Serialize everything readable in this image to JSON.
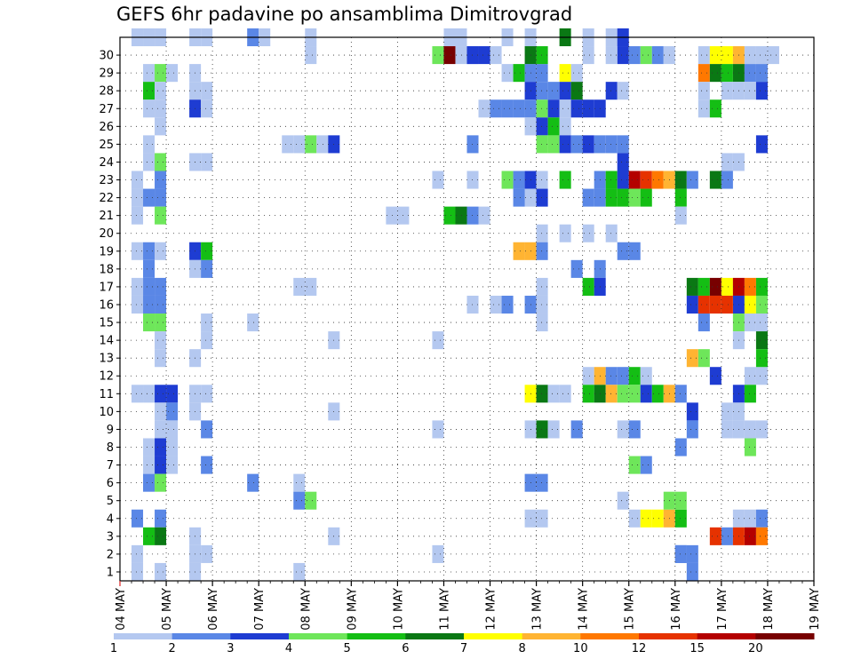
{
  "title": "GEFS 6hr padavine po ansamblima Dimitrovgrad",
  "chart_data": {
    "type": "heatmap",
    "title": "GEFS 6hr padavine po ansamblima Dimitrovgrad",
    "xlabel": "",
    "ylabel": "",
    "x_tick_labels": [
      "04 MAY",
      "05 MAY",
      "06 MAY",
      "07 MAY",
      "08 MAY",
      "09 MAY",
      "10 MAY",
      "11 MAY",
      "12 MAY",
      "13 MAY",
      "14 MAY",
      "15 MAY",
      "16 MAY",
      "17 MAY",
      "18 MAY",
      "19 MAY"
    ],
    "y_tick_labels": [
      "1",
      "2",
      "3",
      "4",
      "5",
      "6",
      "7",
      "8",
      "9",
      "10",
      "11",
      "12",
      "13",
      "14",
      "15",
      "16",
      "17",
      "18",
      "19",
      "20",
      "21",
      "22",
      "23",
      "24",
      "25",
      "26",
      "27",
      "28",
      "29",
      "30"
    ],
    "ylim": [
      0,
      30
    ],
    "grid": true,
    "step_hours": 6,
    "legend": {
      "placement": "bottom",
      "levels": [
        "1",
        "2",
        "3",
        "4",
        "5",
        "6",
        "7",
        "8",
        "10",
        "12",
        "15",
        "20"
      ],
      "colors": [
        "#b4c8f0",
        "#5a87e6",
        "#1e3cd2",
        "#6ee65a",
        "#14be14",
        "#0a7814",
        "#ffff00",
        "#ffb432",
        "#ff7800",
        "#e63200",
        "#b40000",
        "#780000"
      ]
    },
    "cell_colors_by_class": [
      "#b4c8f0",
      "#5a87e6",
      "#1e3cd2",
      "#6ee65a",
      "#14be14",
      "#0a7814",
      "#ffff00",
      "#ffb432",
      "#ff7800",
      "#e63200",
      "#b40000",
      "#780000"
    ],
    "cells": [
      [
        1,
        30,
        1
      ],
      [
        2,
        30,
        1
      ],
      [
        3,
        30,
        1
      ],
      [
        6,
        30,
        1
      ],
      [
        7,
        30,
        1
      ],
      [
        11,
        30,
        2
      ],
      [
        12,
        30,
        1
      ],
      [
        16,
        30,
        1
      ],
      [
        16,
        29,
        1
      ],
      [
        28,
        30,
        1
      ],
      [
        29,
        30,
        1
      ],
      [
        35,
        30,
        1
      ],
      [
        30,
        29,
        1
      ],
      [
        33,
        30,
        1
      ],
      [
        2,
        28,
        1
      ],
      [
        3,
        28,
        4
      ],
      [
        4,
        28,
        1
      ],
      [
        2,
        27,
        5
      ],
      [
        3,
        27,
        1
      ],
      [
        2,
        26,
        1
      ],
      [
        3,
        26,
        1
      ],
      [
        3,
        25,
        1
      ],
      [
        2,
        24,
        1
      ],
      [
        2,
        23,
        1
      ],
      [
        3,
        23,
        4
      ],
      [
        1,
        22,
        1
      ],
      [
        3,
        22,
        2
      ],
      [
        1,
        21,
        1
      ],
      [
        2,
        21,
        2
      ],
      [
        3,
        21,
        2
      ],
      [
        1,
        20,
        1
      ],
      [
        3,
        20,
        4
      ],
      [
        1,
        18,
        1
      ],
      [
        2,
        18,
        2
      ],
      [
        3,
        18,
        1
      ],
      [
        2,
        17,
        2
      ],
      [
        2,
        16,
        2
      ],
      [
        1,
        16,
        1
      ],
      [
        3,
        16,
        2
      ],
      [
        1,
        15,
        1
      ],
      [
        2,
        15,
        2
      ],
      [
        3,
        15,
        2
      ],
      [
        3,
        14,
        4
      ],
      [
        2,
        14,
        4
      ],
      [
        3,
        13,
        1
      ],
      [
        3,
        12,
        1
      ],
      [
        1,
        10,
        1
      ],
      [
        2,
        10,
        1
      ],
      [
        3,
        10,
        3
      ],
      [
        4,
        10,
        3
      ],
      [
        4,
        9,
        2
      ],
      [
        3,
        9,
        1
      ],
      [
        4,
        8,
        1
      ],
      [
        3,
        8,
        1
      ],
      [
        2,
        7,
        1
      ],
      [
        3,
        7,
        3
      ],
      [
        4,
        7,
        1
      ],
      [
        2,
        6,
        1
      ],
      [
        3,
        6,
        3
      ],
      [
        4,
        6,
        1
      ],
      [
        2,
        5,
        2
      ],
      [
        3,
        5,
        4
      ],
      [
        1,
        3,
        2
      ],
      [
        3,
        3,
        2
      ],
      [
        2,
        2,
        5
      ],
      [
        3,
        2,
        6
      ],
      [
        1,
        1,
        1
      ],
      [
        1,
        0,
        1
      ],
      [
        3,
        0,
        1
      ],
      [
        6,
        28,
        1
      ],
      [
        6,
        27,
        1
      ],
      [
        7,
        27,
        1
      ],
      [
        6,
        26,
        3
      ],
      [
        7,
        26,
        1
      ],
      [
        6,
        23,
        1
      ],
      [
        7,
        23,
        1
      ],
      [
        6,
        18,
        3
      ],
      [
        7,
        18,
        5
      ],
      [
        6,
        17,
        1
      ],
      [
        7,
        17,
        2
      ],
      [
        7,
        14,
        1
      ],
      [
        6,
        12,
        1
      ],
      [
        7,
        13,
        1
      ],
      [
        6,
        10,
        1
      ],
      [
        7,
        10,
        1
      ],
      [
        6,
        9,
        1
      ],
      [
        7,
        8,
        2
      ],
      [
        7,
        6,
        2
      ],
      [
        6,
        2,
        1
      ],
      [
        6,
        1,
        1
      ],
      [
        7,
        1,
        1
      ],
      [
        6,
        0,
        1
      ],
      [
        11,
        14,
        1
      ],
      [
        11,
        5,
        2
      ],
      [
        15,
        5,
        1
      ],
      [
        15,
        4,
        2
      ],
      [
        16,
        4,
        4
      ],
      [
        15,
        16,
        1
      ],
      [
        16,
        16,
        1
      ],
      [
        14,
        24,
        1
      ],
      [
        15,
        24,
        1
      ],
      [
        16,
        24,
        4
      ],
      [
        17,
        24,
        1
      ],
      [
        18,
        24,
        3
      ],
      [
        18,
        13,
        1
      ],
      [
        18,
        9,
        1
      ],
      [
        18,
        2,
        1
      ],
      [
        15,
        0,
        1
      ],
      [
        23,
        20,
        1
      ],
      [
        24,
        20,
        1
      ],
      [
        27,
        29,
        4
      ],
      [
        28,
        29,
        12
      ],
      [
        29,
        29,
        1
      ],
      [
        30,
        29,
        3
      ],
      [
        31,
        29,
        3
      ],
      [
        32,
        29,
        1
      ],
      [
        33,
        28,
        1
      ],
      [
        34,
        28,
        5
      ],
      [
        35,
        28,
        2
      ],
      [
        36,
        28,
        2
      ],
      [
        28,
        20,
        5
      ],
      [
        29,
        20,
        6
      ],
      [
        30,
        20,
        2
      ],
      [
        31,
        20,
        1
      ],
      [
        27,
        22,
        1
      ],
      [
        30,
        22,
        1
      ],
      [
        33,
        22,
        4
      ],
      [
        27,
        13,
        1
      ],
      [
        27,
        8,
        1
      ],
      [
        27,
        1,
        1
      ],
      [
        30,
        24,
        2
      ],
      [
        30,
        15,
        1
      ],
      [
        31,
        26,
        1
      ],
      [
        32,
        26,
        2
      ],
      [
        33,
        26,
        2
      ],
      [
        34,
        26,
        2
      ],
      [
        35,
        29,
        6
      ],
      [
        36,
        29,
        5
      ],
      [
        35,
        27,
        3
      ],
      [
        36,
        27,
        2
      ],
      [
        37,
        27,
        2
      ],
      [
        35,
        26,
        2
      ],
      [
        36,
        26,
        4
      ],
      [
        37,
        26,
        3
      ],
      [
        35,
        25,
        1
      ],
      [
        36,
        25,
        3
      ],
      [
        34,
        22,
        2
      ],
      [
        35,
        22,
        3
      ],
      [
        36,
        22,
        1
      ],
      [
        35,
        21,
        1
      ],
      [
        36,
        21,
        3
      ],
      [
        34,
        21,
        2
      ],
      [
        36,
        24,
        4
      ],
      [
        37,
        24,
        4
      ],
      [
        36,
        19,
        1
      ],
      [
        35,
        18,
        8
      ],
      [
        34,
        18,
        8
      ],
      [
        36,
        18,
        2
      ],
      [
        36,
        16,
        1
      ],
      [
        35,
        15,
        2
      ],
      [
        36,
        15,
        1
      ],
      [
        32,
        15,
        1
      ],
      [
        33,
        15,
        2
      ],
      [
        36,
        14,
        1
      ],
      [
        35,
        10,
        7
      ],
      [
        36,
        10,
        6
      ],
      [
        37,
        10,
        1
      ],
      [
        35,
        8,
        1
      ],
      [
        36,
        8,
        6
      ],
      [
        37,
        8,
        1
      ],
      [
        35,
        5,
        2
      ],
      [
        36,
        5,
        2
      ],
      [
        35,
        3,
        1
      ],
      [
        36,
        3,
        1
      ],
      [
        38,
        30,
        6
      ],
      [
        40,
        30,
        1
      ],
      [
        42,
        30,
        1
      ],
      [
        43,
        30,
        3
      ],
      [
        43,
        29,
        3
      ],
      [
        42,
        29,
        1
      ],
      [
        40,
        29,
        1
      ],
      [
        44,
        29,
        2
      ],
      [
        45,
        29,
        4
      ],
      [
        46,
        29,
        2
      ],
      [
        47,
        29,
        1
      ],
      [
        38,
        28,
        7
      ],
      [
        39,
        28,
        1
      ],
      [
        38,
        27,
        3
      ],
      [
        39,
        27,
        6
      ],
      [
        42,
        27,
        3
      ],
      [
        43,
        27,
        1
      ],
      [
        38,
        26,
        1
      ],
      [
        39,
        26,
        3
      ],
      [
        40,
        26,
        3
      ],
      [
        41,
        26,
        3
      ],
      [
        37,
        25,
        5
      ],
      [
        38,
        25,
        1
      ],
      [
        38,
        24,
        3
      ],
      [
        39,
        24,
        2
      ],
      [
        40,
        24,
        3
      ],
      [
        41,
        24,
        2
      ],
      [
        42,
        24,
        2
      ],
      [
        43,
        24,
        2
      ],
      [
        43,
        23,
        3
      ],
      [
        38,
        22,
        5
      ],
      [
        41,
        22,
        2
      ],
      [
        42,
        22,
        5
      ],
      [
        43,
        22,
        3
      ],
      [
        44,
        22,
        11
      ],
      [
        45,
        22,
        10
      ],
      [
        46,
        22,
        9
      ],
      [
        47,
        22,
        8
      ],
      [
        48,
        22,
        6
      ],
      [
        49,
        22,
        2
      ],
      [
        40,
        21,
        2
      ],
      [
        41,
        21,
        2
      ],
      [
        42,
        21,
        5
      ],
      [
        43,
        21,
        5
      ],
      [
        44,
        21,
        4
      ],
      [
        45,
        21,
        5
      ],
      [
        48,
        21,
        5
      ],
      [
        38,
        19,
        1
      ],
      [
        40,
        19,
        1
      ],
      [
        42,
        19,
        1
      ],
      [
        43,
        18,
        2
      ],
      [
        44,
        18,
        2
      ],
      [
        39,
        17,
        2
      ],
      [
        41,
        17,
        2
      ],
      [
        40,
        16,
        5
      ],
      [
        41,
        16,
        3
      ],
      [
        40,
        11,
        1
      ],
      [
        41,
        11,
        8
      ],
      [
        42,
        11,
        2
      ],
      [
        43,
        11,
        2
      ],
      [
        44,
        11,
        5
      ],
      [
        45,
        11,
        1
      ],
      [
        38,
        10,
        1
      ],
      [
        40,
        10,
        5
      ],
      [
        41,
        10,
        6
      ],
      [
        42,
        10,
        8
      ],
      [
        43,
        10,
        4
      ],
      [
        44,
        10,
        4
      ],
      [
        45,
        10,
        3
      ],
      [
        46,
        10,
        5
      ],
      [
        47,
        10,
        8
      ],
      [
        48,
        10,
        2
      ],
      [
        39,
        8,
        2
      ],
      [
        43,
        8,
        1
      ],
      [
        44,
        8,
        2
      ],
      [
        48,
        7,
        2
      ],
      [
        44,
        6,
        4
      ],
      [
        45,
        6,
        2
      ],
      [
        43,
        4,
        1
      ],
      [
        44,
        3,
        1
      ],
      [
        45,
        3,
        7
      ],
      [
        46,
        3,
        7
      ],
      [
        47,
        3,
        8
      ],
      [
        48,
        3,
        5
      ],
      [
        47,
        4,
        4
      ],
      [
        48,
        4,
        4
      ],
      [
        49,
        0,
        2
      ],
      [
        48,
        1,
        2
      ],
      [
        50,
        29,
        1
      ],
      [
        51,
        29,
        7
      ],
      [
        52,
        29,
        7
      ],
      [
        53,
        29,
        8
      ],
      [
        54,
        29,
        1
      ],
      [
        55,
        29,
        1
      ],
      [
        56,
        29,
        1
      ],
      [
        50,
        28,
        9
      ],
      [
        51,
        28,
        6
      ],
      [
        52,
        28,
        5
      ],
      [
        53,
        28,
        6
      ],
      [
        54,
        28,
        2
      ],
      [
        55,
        28,
        2
      ],
      [
        50,
        27,
        1
      ],
      [
        52,
        27,
        1
      ],
      [
        53,
        27,
        1
      ],
      [
        54,
        27,
        1
      ],
      [
        55,
        27,
        3
      ],
      [
        50,
        26,
        1
      ],
      [
        51,
        26,
        5
      ],
      [
        55,
        24,
        3
      ],
      [
        52,
        23,
        1
      ],
      [
        53,
        23,
        1
      ],
      [
        51,
        22,
        6
      ],
      [
        52,
        22,
        2
      ],
      [
        48,
        20,
        1
      ],
      [
        49,
        16,
        6
      ],
      [
        50,
        16,
        5
      ],
      [
        51,
        16,
        12
      ],
      [
        52,
        16,
        7
      ],
      [
        53,
        16,
        11
      ],
      [
        54,
        16,
        9
      ],
      [
        55,
        16,
        5
      ],
      [
        53,
        15,
        3
      ],
      [
        54,
        15,
        7
      ],
      [
        55,
        15,
        4
      ],
      [
        49,
        15,
        3
      ],
      [
        50,
        15,
        10
      ],
      [
        51,
        15,
        10
      ],
      [
        52,
        15,
        10
      ],
      [
        53,
        14,
        4
      ],
      [
        54,
        14,
        1
      ],
      [
        55,
        14,
        1
      ],
      [
        50,
        14,
        2
      ],
      [
        55,
        13,
        6
      ],
      [
        53,
        13,
        1
      ],
      [
        54,
        11,
        1
      ],
      [
        55,
        11,
        1
      ],
      [
        55,
        12,
        5
      ],
      [
        49,
        12,
        8
      ],
      [
        50,
        12,
        4
      ],
      [
        51,
        11,
        3
      ],
      [
        53,
        10,
        3
      ],
      [
        54,
        10,
        5
      ],
      [
        52,
        9,
        1
      ],
      [
        53,
        9,
        1
      ],
      [
        52,
        8,
        1
      ],
      [
        53,
        8,
        1
      ],
      [
        54,
        8,
        1
      ],
      [
        55,
        8,
        1
      ],
      [
        49,
        9,
        3
      ],
      [
        49,
        8,
        2
      ],
      [
        54,
        7,
        4
      ],
      [
        53,
        3,
        1
      ],
      [
        54,
        3,
        1
      ],
      [
        55,
        3,
        2
      ],
      [
        54,
        2,
        11
      ],
      [
        55,
        2,
        9
      ],
      [
        52,
        2,
        2
      ],
      [
        51,
        2,
        10
      ],
      [
        53,
        2,
        10
      ],
      [
        48,
        1,
        2
      ],
      [
        49,
        1,
        2
      ]
    ]
  }
}
